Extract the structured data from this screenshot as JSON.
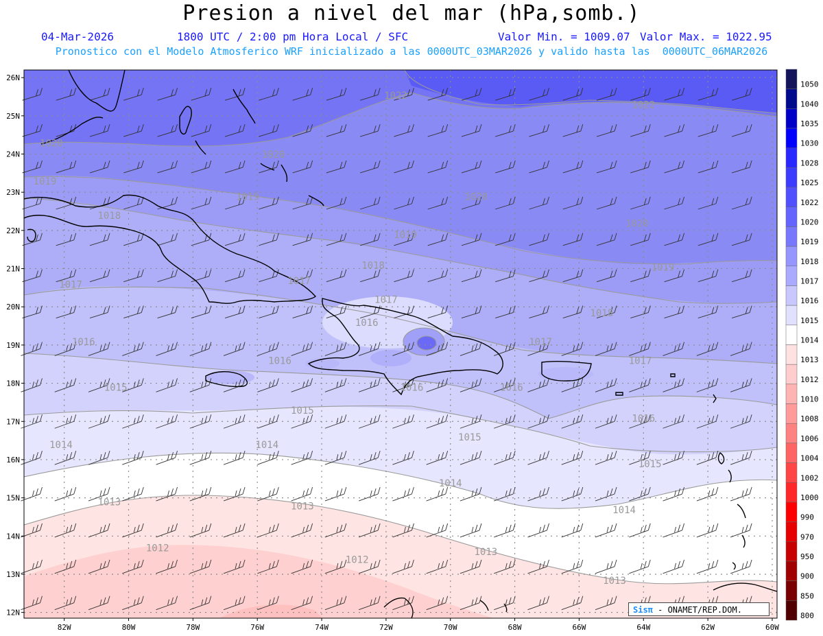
{
  "title": "Presion a nivel del mar (hPa,somb.)",
  "date": "04-Mar-2026",
  "time_info": "1800 UTC / 2:00 pm Hora Local / SFC",
  "min_label": "Valor Min. = 1009.07",
  "max_label": "Valor Max. = 1022.95",
  "forecast_line": "Pronostico con el Modelo Atmosferico WRF inicializado a las 0000UTC_03MAR2026 y valido hasta las  0000UTC_06MAR2026",
  "credit": {
    "brand": "Sisπ",
    "text": " - ONAMET/REP.DOM."
  },
  "lat_labels": [
    "26N",
    "25N",
    "24N",
    "23N",
    "22N",
    "21N",
    "20N",
    "19N",
    "18N",
    "17N",
    "16N",
    "15N",
    "14N",
    "13N",
    "12N"
  ],
  "lon_labels": [
    "82W",
    "80W",
    "78W",
    "76W",
    "74W",
    "72W",
    "70W",
    "68W",
    "66W",
    "64W",
    "62W",
    "60W"
  ],
  "legend": {
    "levels": [
      "1050",
      "1040",
      "1035",
      "1030",
      "1028",
      "1025",
      "1022",
      "1020",
      "1019",
      "1018",
      "1017",
      "1016",
      "1015",
      "1014",
      "1013",
      "1012",
      "1010",
      "1008",
      "1006",
      "1004",
      "1002",
      "1000",
      "990",
      "970",
      "950",
      "900",
      "850",
      "800"
    ],
    "colors": [
      "#14145a",
      "#000a8c",
      "#0000c8",
      "#0000ff",
      "#2828ff",
      "#3c3cff",
      "#5050ff",
      "#6464ff",
      "#7878ff",
      "#9696ff",
      "#aaaaff",
      "#c8c8ff",
      "#e1e1ff",
      "#ffffff",
      "#ffe1e1",
      "#ffcdcd",
      "#ffb4b4",
      "#ff9b9b",
      "#ff8282",
      "#ff6464",
      "#ff4646",
      "#ff2828",
      "#ff0000",
      "#e60000",
      "#c80000",
      "#a00000",
      "#780000",
      "#500000"
    ]
  },
  "contour_labels": [
    {
      "text": "1022",
      "lon": -71.7,
      "lat": 25.45
    },
    {
      "text": "1022",
      "lon": -64.0,
      "lat": 25.2
    },
    {
      "text": "1020",
      "lon": -82.4,
      "lat": 24.2
    },
    {
      "text": "1020",
      "lon": -75.5,
      "lat": 23.9
    },
    {
      "text": "1020",
      "lon": -69.2,
      "lat": 22.8
    },
    {
      "text": "1020",
      "lon": -64.2,
      "lat": 22.1
    },
    {
      "text": "1019",
      "lon": -82.6,
      "lat": 23.2
    },
    {
      "text": "1019",
      "lon": -76.3,
      "lat": 22.8
    },
    {
      "text": "1019",
      "lon": -71.4,
      "lat": 21.8
    },
    {
      "text": "1019",
      "lon": -63.4,
      "lat": 20.95
    },
    {
      "text": "1018",
      "lon": -80.6,
      "lat": 22.3
    },
    {
      "text": "1018",
      "lon": -72.4,
      "lat": 21.0
    },
    {
      "text": "1018",
      "lon": -65.3,
      "lat": 19.75
    },
    {
      "text": "1017",
      "lon": -81.8,
      "lat": 20.5
    },
    {
      "text": "1017",
      "lon": -74.7,
      "lat": 20.6
    },
    {
      "text": "1017",
      "lon": -72.0,
      "lat": 20.1
    },
    {
      "text": "1017",
      "lon": -67.2,
      "lat": 19.0
    },
    {
      "text": "1017",
      "lon": -64.1,
      "lat": 18.5
    },
    {
      "text": "1016",
      "lon": -81.4,
      "lat": 19.0
    },
    {
      "text": "1016",
      "lon": -75.3,
      "lat": 18.5
    },
    {
      "text": "1016",
      "lon": -72.6,
      "lat": 19.5
    },
    {
      "text": "1016",
      "lon": -71.2,
      "lat": 17.8
    },
    {
      "text": "1016",
      "lon": -68.1,
      "lat": 17.8
    },
    {
      "text": "1016",
      "lon": -64.0,
      "lat": 17.0
    },
    {
      "text": "1015",
      "lon": -80.4,
      "lat": 17.8
    },
    {
      "text": "1015",
      "lon": -74.6,
      "lat": 17.2
    },
    {
      "text": "1015",
      "lon": -69.4,
      "lat": 16.5
    },
    {
      "text": "1015",
      "lon": -63.8,
      "lat": 15.8
    },
    {
      "text": "1014",
      "lon": -82.1,
      "lat": 16.3
    },
    {
      "text": "1014",
      "lon": -75.7,
      "lat": 16.3
    },
    {
      "text": "1014",
      "lon": -70.0,
      "lat": 15.3
    },
    {
      "text": "1014",
      "lon": -64.6,
      "lat": 14.6
    },
    {
      "text": "1013",
      "lon": -80.6,
      "lat": 14.8
    },
    {
      "text": "1013",
      "lon": -74.6,
      "lat": 14.7
    },
    {
      "text": "1013",
      "lon": -68.9,
      "lat": 13.5
    },
    {
      "text": "1013",
      "lon": -64.9,
      "lat": 12.75
    },
    {
      "text": "1012",
      "lon": -79.1,
      "lat": 13.6
    },
    {
      "text": "1012",
      "lon": -72.9,
      "lat": 13.3
    }
  ]
}
